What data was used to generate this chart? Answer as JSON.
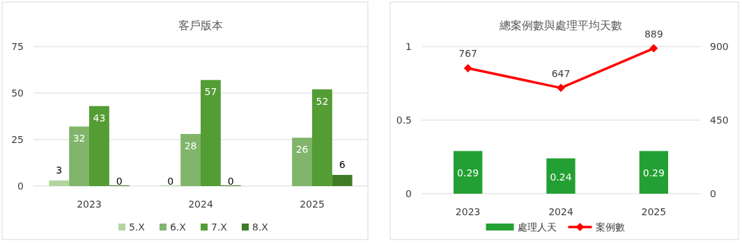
{
  "chart_data": [
    {
      "type": "bar",
      "title": "客戶版本",
      "categories": [
        "2023",
        "2024",
        "2025"
      ],
      "series": [
        {
          "name": "5.X",
          "color": "#b2d5a0",
          "values": [
            3,
            0,
            null
          ]
        },
        {
          "name": "6.X",
          "color": "#80b56b",
          "values": [
            32,
            28,
            26
          ]
        },
        {
          "name": "7.X",
          "color": "#549c34",
          "values": [
            43,
            57,
            52
          ]
        },
        {
          "name": "8.X",
          "color": "#3f7c25",
          "values": [
            0,
            0,
            6
          ]
        }
      ],
      "ylim": [
        0,
        75
      ],
      "yticks": [
        0,
        25,
        50,
        75
      ],
      "grid": "y",
      "legend": "bottom",
      "data_labels": true
    },
    {
      "type": "bar",
      "title": "總案例數與處理平均天數",
      "categories": [
        "2023",
        "2024",
        "2025"
      ],
      "series": [
        {
          "name": "處理人天",
          "color": "#23a033",
          "values": [
            0.29,
            0.24,
            0.29
          ]
        },
        {
          "name": "案例數",
          "type": "line",
          "axis": "y2",
          "color": "#ff0000",
          "marker": "diamond",
          "values": [
            767,
            647,
            889
          ]
        }
      ],
      "ylim": [
        0,
        1
      ],
      "yticks": [
        0,
        0.5,
        1
      ],
      "y2lim": [
        0,
        900
      ],
      "y2ticks": [
        0,
        450,
        900
      ],
      "grid": "y",
      "legend": "bottom",
      "data_labels": true
    }
  ]
}
